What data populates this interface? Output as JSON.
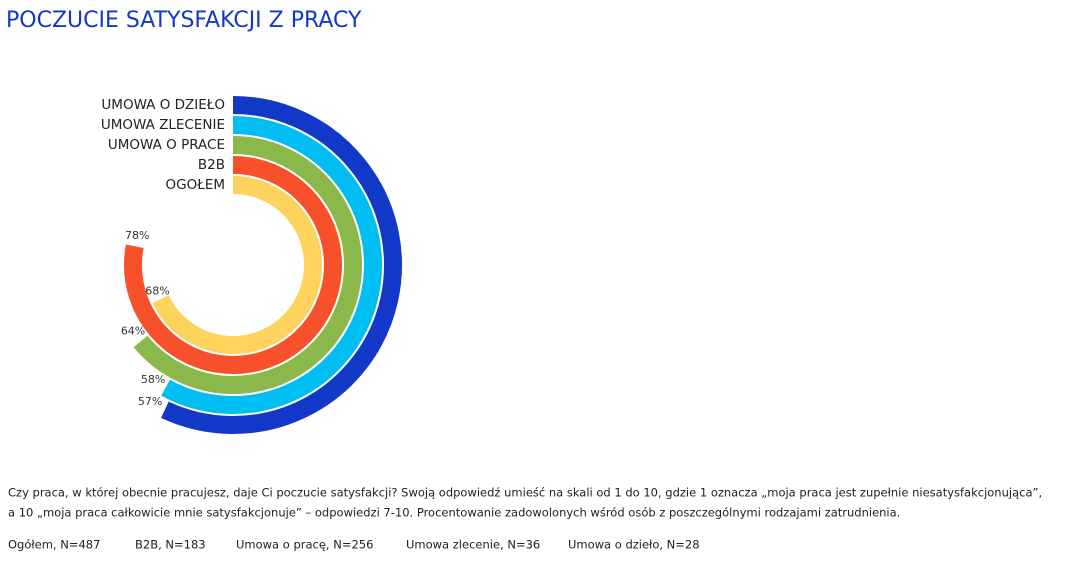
{
  "chart_data": {
    "type": "radial-bar",
    "title": "POCZUCIE SATYSFAKCJI Z PRACY",
    "categories": [
      "UMOWA O DZIEŁO",
      "UMOWA ZLECENIE",
      "UMOWA O PRACE",
      "B2B",
      "OGOŁEM"
    ],
    "values": [
      57,
      58,
      64,
      78,
      68
    ],
    "value_labels": [
      "57%",
      "58%",
      "64%",
      "78%",
      "68%"
    ],
    "colors": [
      "#1238c8",
      "#00bdf2",
      "#8bb84a",
      "#f7502a",
      "#fdd35e"
    ],
    "ylim": [
      0,
      100
    ]
  },
  "footer": {
    "question": [
      "Czy praca, w której obecnie pracujesz, daje Ci poczucie satysfakcji? Swoją odpowiedź umieść na skali od 1 do 10, gdzie 1 oznacza „moja praca jest zupełnie niesatysfakcjonująca”,",
      "a 10 „moja praca całkowicie mnie satysfakcjonuje” – odpowiedzi 7-10. Procentowanie zadowolonych wśród osób z poszczególnymi rodzajami zatrudnienia."
    ],
    "samples": [
      "Ogółem, N=487",
      "B2B, N=183",
      "Umowa o pracę, N=256",
      "Umowa zlecenie, N=36",
      "Umowa o dzieło, N=28"
    ]
  }
}
